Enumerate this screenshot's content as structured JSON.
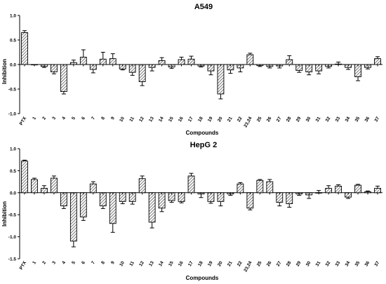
{
  "chart_data": [
    {
      "type": "bar",
      "title": "A549",
      "xlabel": "Compounds",
      "ylabel": "Inhibition",
      "ylim": [
        -1.0,
        1.0
      ],
      "yticks": [
        "1.0",
        "0.5",
        "0.0",
        "-0.5",
        "-1.0"
      ],
      "categories": [
        "PTX",
        "1",
        "2",
        "3",
        "4",
        "5",
        "6",
        "7",
        "8",
        "9",
        "10",
        "11",
        "12",
        "13",
        "14",
        "15",
        "16",
        "17",
        "18",
        "19",
        "20",
        "21",
        "22",
        "23,24",
        "25",
        "26",
        "27",
        "28",
        "29",
        "30",
        "31",
        "32",
        "33",
        "34",
        "35",
        "36",
        "37"
      ],
      "values": [
        0.65,
        0.0,
        -0.04,
        -0.15,
        -0.55,
        0.04,
        0.15,
        -0.1,
        0.11,
        0.12,
        -0.09,
        -0.16,
        -0.35,
        -0.06,
        0.08,
        -0.05,
        0.1,
        0.11,
        -0.03,
        -0.13,
        -0.6,
        -0.11,
        -0.07,
        0.2,
        -0.02,
        -0.04,
        -0.03,
        0.1,
        -0.12,
        -0.15,
        -0.13,
        -0.04,
        0.01,
        -0.06,
        -0.25,
        -0.06,
        0.12
      ],
      "errors": [
        0.04,
        0.0,
        0.02,
        0.04,
        0.05,
        0.05,
        0.15,
        0.07,
        0.14,
        0.1,
        0.02,
        0.06,
        0.08,
        0.07,
        0.06,
        0.03,
        0.05,
        0.06,
        0.02,
        0.08,
        0.1,
        0.07,
        0.08,
        0.03,
        0.02,
        0.03,
        0.04,
        0.08,
        0.04,
        0.06,
        0.06,
        0.03,
        0.04,
        0.04,
        0.08,
        0.03,
        0.04
      ]
    },
    {
      "type": "bar",
      "title": "HepG 2",
      "xlabel": "Compounds",
      "ylabel": "Inhibition",
      "ylim": [
        -1.5,
        1.0
      ],
      "yticks": [
        "1.0",
        "0.5",
        "0.0",
        "-0.5",
        "-1.0",
        "-1.5"
      ],
      "categories": [
        "PTX",
        "1",
        "2",
        "3",
        "4",
        "5",
        "6",
        "7",
        "8",
        "9",
        "10",
        "11",
        "12",
        "13",
        "14",
        "15",
        "16",
        "17",
        "18",
        "19",
        "20",
        "21",
        "22",
        "23,24",
        "25",
        "26",
        "27",
        "28",
        "29",
        "30",
        "31",
        "32",
        "33",
        "34",
        "35",
        "36",
        "37"
      ],
      "values": [
        0.72,
        0.3,
        0.1,
        0.33,
        -0.3,
        -1.1,
        -0.55,
        0.2,
        -0.3,
        -0.7,
        -0.2,
        -0.2,
        0.32,
        -0.67,
        -0.35,
        -0.18,
        -0.2,
        0.38,
        -0.03,
        -0.2,
        -0.2,
        -0.03,
        0.2,
        -0.35,
        0.28,
        0.25,
        -0.22,
        -0.25,
        -0.03,
        -0.05,
        0.0,
        0.1,
        0.15,
        -0.1,
        0.17,
        0.02,
        0.1
      ],
      "errors": [
        0.02,
        0.03,
        0.06,
        0.05,
        0.06,
        0.13,
        0.08,
        0.05,
        0.06,
        0.2,
        0.05,
        0.06,
        0.06,
        0.13,
        0.08,
        0.04,
        0.03,
        0.06,
        0.08,
        0.04,
        0.1,
        0.03,
        0.03,
        0.04,
        0.02,
        0.05,
        0.08,
        0.08,
        0.03,
        0.08,
        0.05,
        0.06,
        0.03,
        0.03,
        0.02,
        0.02,
        0.05
      ]
    }
  ]
}
